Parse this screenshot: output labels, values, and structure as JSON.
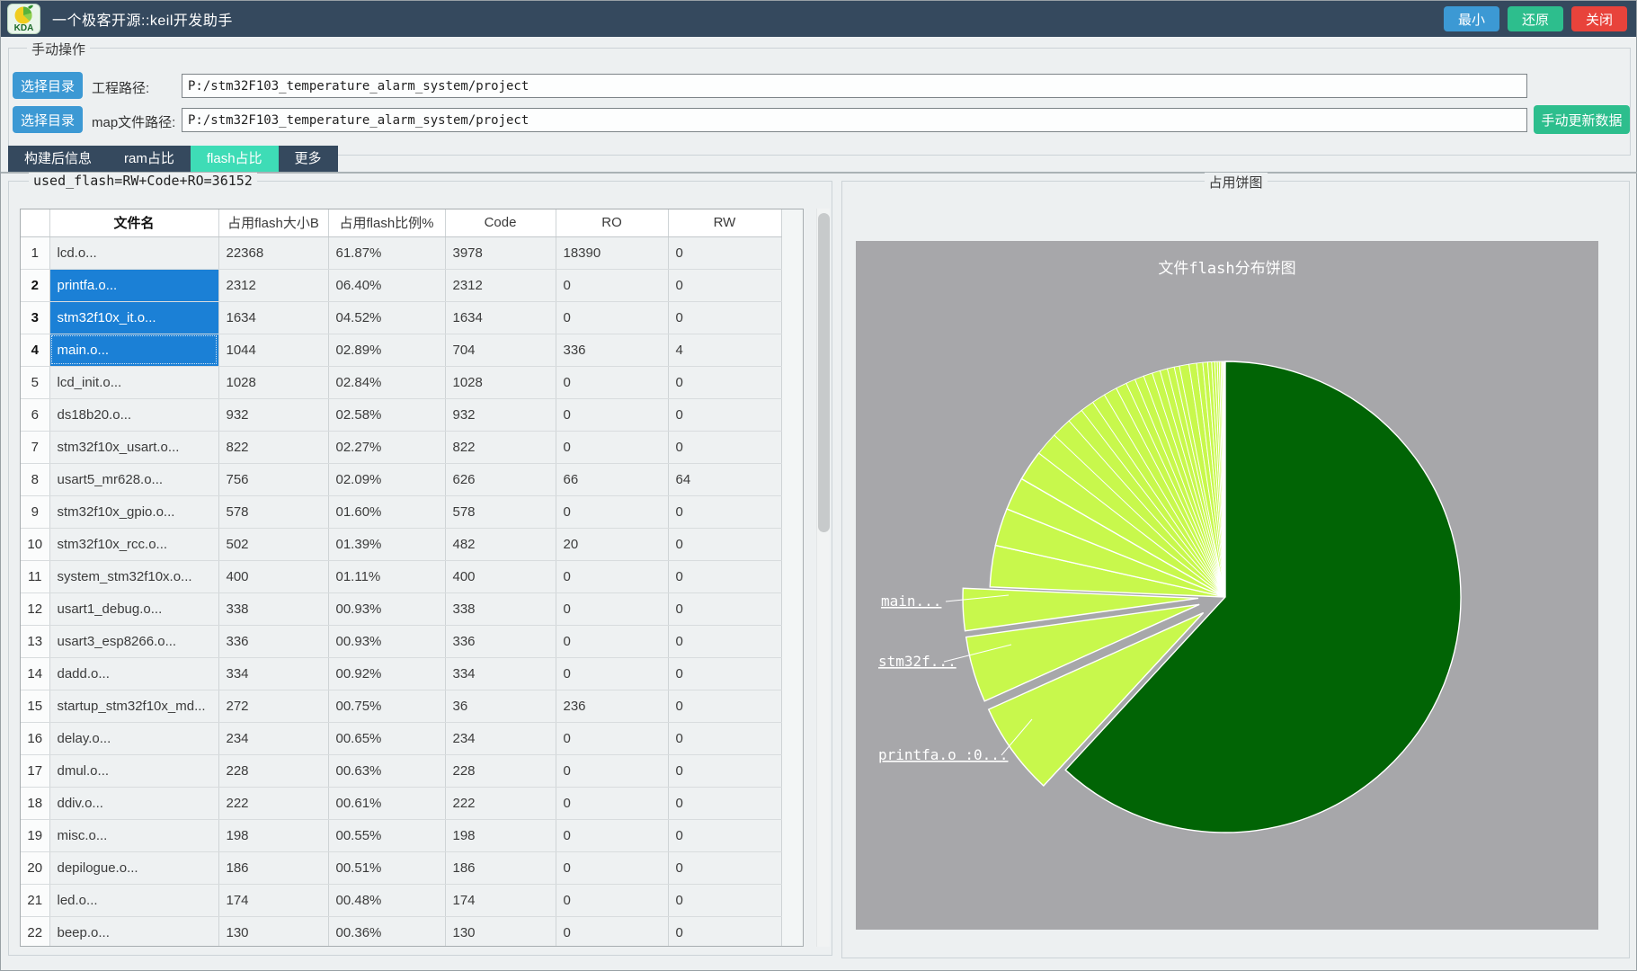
{
  "window": {
    "title": "一个极客开源::keil开发助手",
    "icon_text": "KDA",
    "buttons": {
      "minimize": "最小",
      "restore": "还原",
      "close": "关闭"
    }
  },
  "manual": {
    "group_label": "手动操作",
    "select_dir_label": "选择目录",
    "project_path_label": "工程路径:",
    "project_path_value": "P:/stm32F103_temperature_alarm_system/project",
    "map_path_label": "map文件路径:",
    "map_path_value": "P:/stm32F103_temperature_alarm_system/project",
    "update_button": "手动更新数据"
  },
  "tabs": [
    {
      "id": "build-info",
      "label": "构建后信息",
      "selected": false
    },
    {
      "id": "ram",
      "label": "ram占比",
      "selected": false
    },
    {
      "id": "flash",
      "label": "flash占比",
      "selected": true
    },
    {
      "id": "more",
      "label": "更多",
      "selected": false
    }
  ],
  "flash_panel": {
    "group_label": "used_flash=RW+Code+RO=36152"
  },
  "table": {
    "headers": [
      "",
      "文件名",
      "占用flash大小B",
      "占用flash比例%",
      "Code",
      "RO",
      "RW"
    ],
    "rows": [
      {
        "n": "1",
        "file": "lcd.o...",
        "size": "22368",
        "pct": "61.87%",
        "code": "3978",
        "ro": "18390",
        "rw": "0",
        "selected": false,
        "current": false
      },
      {
        "n": "2",
        "file": "printfa.o...",
        "size": "2312",
        "pct": "06.40%",
        "code": "2312",
        "ro": "0",
        "rw": "0",
        "selected": true,
        "current": false
      },
      {
        "n": "3",
        "file": "stm32f10x_it.o...",
        "size": "1634",
        "pct": "04.52%",
        "code": "1634",
        "ro": "0",
        "rw": "0",
        "selected": true,
        "current": false
      },
      {
        "n": "4",
        "file": "main.o...",
        "size": "1044",
        "pct": "02.89%",
        "code": "704",
        "ro": "336",
        "rw": "4",
        "selected": true,
        "current": true
      },
      {
        "n": "5",
        "file": "lcd_init.o...",
        "size": "1028",
        "pct": "02.84%",
        "code": "1028",
        "ro": "0",
        "rw": "0",
        "selected": false,
        "current": false
      },
      {
        "n": "6",
        "file": "ds18b20.o...",
        "size": "932",
        "pct": "02.58%",
        "code": "932",
        "ro": "0",
        "rw": "0",
        "selected": false,
        "current": false
      },
      {
        "n": "7",
        "file": "stm32f10x_usart.o...",
        "size": "822",
        "pct": "02.27%",
        "code": "822",
        "ro": "0",
        "rw": "0",
        "selected": false,
        "current": false
      },
      {
        "n": "8",
        "file": "usart5_mr628.o...",
        "size": "756",
        "pct": "02.09%",
        "code": "626",
        "ro": "66",
        "rw": "64",
        "selected": false,
        "current": false
      },
      {
        "n": "9",
        "file": "stm32f10x_gpio.o...",
        "size": "578",
        "pct": "01.60%",
        "code": "578",
        "ro": "0",
        "rw": "0",
        "selected": false,
        "current": false
      },
      {
        "n": "10",
        "file": "stm32f10x_rcc.o...",
        "size": "502",
        "pct": "01.39%",
        "code": "482",
        "ro": "20",
        "rw": "0",
        "selected": false,
        "current": false
      },
      {
        "n": "11",
        "file": "system_stm32f10x.o...",
        "size": "400",
        "pct": "01.11%",
        "code": "400",
        "ro": "0",
        "rw": "0",
        "selected": false,
        "current": false
      },
      {
        "n": "12",
        "file": "usart1_debug.o...",
        "size": "338",
        "pct": "00.93%",
        "code": "338",
        "ro": "0",
        "rw": "0",
        "selected": false,
        "current": false
      },
      {
        "n": "13",
        "file": "usart3_esp8266.o...",
        "size": "336",
        "pct": "00.93%",
        "code": "336",
        "ro": "0",
        "rw": "0",
        "selected": false,
        "current": false
      },
      {
        "n": "14",
        "file": "dadd.o...",
        "size": "334",
        "pct": "00.92%",
        "code": "334",
        "ro": "0",
        "rw": "0",
        "selected": false,
        "current": false
      },
      {
        "n": "15",
        "file": "startup_stm32f10x_md...",
        "size": "272",
        "pct": "00.75%",
        "code": "36",
        "ro": "236",
        "rw": "0",
        "selected": false,
        "current": false
      },
      {
        "n": "16",
        "file": "delay.o...",
        "size": "234",
        "pct": "00.65%",
        "code": "234",
        "ro": "0",
        "rw": "0",
        "selected": false,
        "current": false
      },
      {
        "n": "17",
        "file": "dmul.o...",
        "size": "228",
        "pct": "00.63%",
        "code": "228",
        "ro": "0",
        "rw": "0",
        "selected": false,
        "current": false
      },
      {
        "n": "18",
        "file": "ddiv.o...",
        "size": "222",
        "pct": "00.61%",
        "code": "222",
        "ro": "0",
        "rw": "0",
        "selected": false,
        "current": false
      },
      {
        "n": "19",
        "file": "misc.o...",
        "size": "198",
        "pct": "00.55%",
        "code": "198",
        "ro": "0",
        "rw": "0",
        "selected": false,
        "current": false
      },
      {
        "n": "20",
        "file": "depilogue.o...",
        "size": "186",
        "pct": "00.51%",
        "code": "186",
        "ro": "0",
        "rw": "0",
        "selected": false,
        "current": false
      },
      {
        "n": "21",
        "file": "led.o...",
        "size": "174",
        "pct": "00.48%",
        "code": "174",
        "ro": "0",
        "rw": "0",
        "selected": false,
        "current": false
      },
      {
        "n": "22",
        "file": "beep.o...",
        "size": "130",
        "pct": "00.36%",
        "code": "130",
        "ro": "0",
        "rw": "0",
        "selected": false,
        "current": false
      }
    ]
  },
  "pie_panel": {
    "group_label": "占用饼图"
  },
  "chart_data": {
    "type": "pie",
    "title": "文件flash分布饼图",
    "unit": "percent",
    "start_angle_deg": 0,
    "direction": "clockwise",
    "bg_color": "#a7a7aa",
    "main_color": "#016405",
    "slice_color": "#c8f84c",
    "slices": [
      {
        "name": "lcd.o",
        "value": 61.87,
        "color": "#016405",
        "exploded": false
      },
      {
        "name": "printfa.o",
        "value": 6.4,
        "exploded": true
      },
      {
        "name": "stm32f10x_it.o",
        "value": 4.52,
        "exploded": true
      },
      {
        "name": "main.o",
        "value": 2.89,
        "exploded": true
      },
      {
        "name": "lcd_init.o",
        "value": 2.84,
        "exploded": false
      },
      {
        "name": "ds18b20.o",
        "value": 2.58,
        "exploded": false
      },
      {
        "name": "stm32f10x_usart.o",
        "value": 2.27,
        "exploded": false
      },
      {
        "name": "usart5_mr628.o",
        "value": 2.09,
        "exploded": false
      },
      {
        "name": "stm32f10x_gpio.o",
        "value": 1.6,
        "exploded": false
      },
      {
        "name": "stm32f10x_rcc.o",
        "value": 1.39,
        "exploded": false
      },
      {
        "name": "system_stm32f10x.o",
        "value": 1.11,
        "exploded": false
      },
      {
        "name": "usart1_debug.o",
        "value": 0.93,
        "exploded": false
      },
      {
        "name": "usart3_esp8266.o",
        "value": 0.93,
        "exploded": false
      },
      {
        "name": "dadd.o",
        "value": 0.92,
        "exploded": false
      },
      {
        "name": "startup_stm32f10x_md",
        "value": 0.75,
        "exploded": false
      },
      {
        "name": "delay.o",
        "value": 0.65,
        "exploded": false
      },
      {
        "name": "dmul.o",
        "value": 0.63,
        "exploded": false
      },
      {
        "name": "ddiv.o",
        "value": 0.61,
        "exploded": false
      },
      {
        "name": "misc.o",
        "value": 0.55,
        "exploded": false
      },
      {
        "name": "depilogue.o",
        "value": 0.51,
        "exploded": false
      },
      {
        "name": "led.o",
        "value": 0.48,
        "exploded": false
      },
      {
        "name": "beep.o",
        "value": 0.36,
        "exploded": false
      }
    ],
    "others_thin_slices_total": 3.12,
    "callouts": [
      {
        "text": "main...",
        "target": "main.o"
      },
      {
        "text": "stm32f...",
        "target": "stm32f10x_it.o"
      },
      {
        "text": "printfa.o :0...",
        "target": "printfa.o"
      }
    ]
  }
}
